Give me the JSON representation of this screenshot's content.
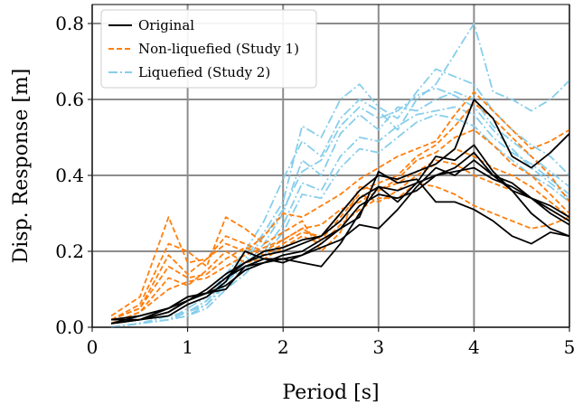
{
  "chart_data": {
    "type": "line",
    "xlabel": "Period [s]",
    "ylabel": "Disp. Response [m]",
    "xlim": [
      0,
      5
    ],
    "ylim": [
      0,
      0.85
    ],
    "xticks": [
      0,
      1,
      2,
      3,
      4,
      5
    ],
    "xtick_labels": [
      "0",
      "1",
      "2",
      "3",
      "4",
      "5"
    ],
    "yticks": [
      0.0,
      0.2,
      0.4,
      0.6,
      0.8
    ],
    "ytick_labels": [
      "0.0",
      "0.2",
      "0.4",
      "0.6",
      "0.8"
    ],
    "grid": true,
    "legend_position": "top-left",
    "groups": [
      {
        "name": "Original",
        "color": "#000000",
        "style": "solid",
        "series": [
          {
            "x": [
              0.2,
              0.5,
              0.8,
              1.0,
              1.2,
              1.4,
              1.6,
              1.8,
              2.0,
              2.2,
              2.4,
              2.6,
              2.8,
              3.0,
              3.2,
              3.4,
              3.6,
              3.8,
              4.0,
              4.2,
              4.4,
              4.6,
              4.8,
              5.0
            ],
            "y": [
              0.01,
              0.02,
              0.04,
              0.07,
              0.09,
              0.13,
              0.17,
              0.2,
              0.21,
              0.23,
              0.24,
              0.3,
              0.36,
              0.4,
              0.39,
              0.41,
              0.43,
              0.47,
              0.6,
              0.55,
              0.45,
              0.42,
              0.46,
              0.51
            ]
          },
          {
            "x": [
              0.2,
              0.5,
              0.8,
              1.0,
              1.2,
              1.4,
              1.6,
              1.8,
              2.0,
              2.2,
              2.4,
              2.6,
              2.8,
              3.0,
              3.2,
              3.4,
              3.6,
              3.8,
              4.0,
              4.2,
              4.4,
              4.6,
              4.8,
              5.0
            ],
            "y": [
              0.02,
              0.03,
              0.05,
              0.08,
              0.09,
              0.1,
              0.16,
              0.18,
              0.18,
              0.17,
              0.16,
              0.22,
              0.3,
              0.37,
              0.33,
              0.38,
              0.45,
              0.44,
              0.48,
              0.41,
              0.36,
              0.34,
              0.31,
              0.28
            ]
          },
          {
            "x": [
              0.2,
              0.5,
              0.8,
              1.0,
              1.2,
              1.4,
              1.6,
              1.8,
              2.0,
              2.2,
              2.4,
              2.6,
              2.8,
              3.0,
              3.2,
              3.4,
              3.6,
              3.8,
              4.0,
              4.2,
              4.4,
              4.6,
              4.8,
              5.0
            ],
            "y": [
              0.01,
              0.02,
              0.03,
              0.06,
              0.08,
              0.12,
              0.2,
              0.18,
              0.17,
              0.19,
              0.22,
              0.26,
              0.32,
              0.35,
              0.34,
              0.36,
              0.4,
              0.42,
              0.46,
              0.4,
              0.36,
              0.3,
              0.26,
              0.24
            ]
          },
          {
            "x": [
              0.2,
              0.5,
              0.8,
              1.0,
              1.2,
              1.4,
              1.6,
              1.8,
              2.0,
              2.2,
              2.4,
              2.6,
              2.8,
              3.0,
              3.2,
              3.4,
              3.6,
              3.8,
              4.0,
              4.2,
              4.4,
              4.6,
              4.8,
              5.0
            ],
            "y": [
              0.01,
              0.02,
              0.04,
              0.07,
              0.1,
              0.14,
              0.17,
              0.19,
              0.2,
              0.22,
              0.24,
              0.28,
              0.34,
              0.37,
              0.36,
              0.38,
              0.4,
              0.41,
              0.42,
              0.39,
              0.37,
              0.34,
              0.3,
              0.27
            ]
          },
          {
            "x": [
              0.2,
              0.5,
              0.8,
              1.0,
              1.2,
              1.4,
              1.6,
              1.8,
              2.0,
              2.2,
              2.4,
              2.6,
              2.8,
              3.0,
              3.2,
              3.4,
              3.6,
              3.8,
              4.0,
              4.2,
              4.4,
              4.6,
              4.8,
              5.0
            ],
            "y": [
              0.02,
              0.02,
              0.05,
              0.08,
              0.09,
              0.11,
              0.15,
              0.17,
              0.19,
              0.2,
              0.23,
              0.26,
              0.29,
              0.41,
              0.38,
              0.39,
              0.33,
              0.33,
              0.31,
              0.28,
              0.24,
              0.22,
              0.25,
              0.24
            ]
          },
          {
            "x": [
              0.2,
              0.5,
              0.8,
              1.0,
              1.2,
              1.4,
              1.6,
              1.8,
              2.0,
              2.2,
              2.4,
              2.6,
              2.8,
              3.0,
              3.2,
              3.4,
              3.6,
              3.8,
              4.0,
              4.2,
              4.4,
              4.6,
              4.8,
              5.0
            ],
            "y": [
              0.01,
              0.03,
              0.05,
              0.07,
              0.09,
              0.13,
              0.16,
              0.17,
              0.18,
              0.19,
              0.21,
              0.23,
              0.27,
              0.26,
              0.31,
              0.37,
              0.42,
              0.4,
              0.44,
              0.4,
              0.38,
              0.34,
              0.32,
              0.29
            ]
          }
        ]
      },
      {
        "name": "Non-liquefied (Study 1)",
        "color": "#ff7f0e",
        "style": "dashed",
        "series": [
          {
            "x": [
              0.2,
              0.5,
              0.8,
              1.0,
              1.2,
              1.4,
              1.6,
              1.8,
              2.0,
              2.2,
              2.4,
              2.6,
              2.8,
              3.0,
              3.2,
              3.4,
              3.6,
              3.8,
              4.0,
              4.2,
              4.4,
              4.6,
              4.8,
              5.0
            ],
            "y": [
              0.03,
              0.08,
              0.29,
              0.17,
              0.18,
              0.22,
              0.2,
              0.24,
              0.3,
              0.29,
              0.32,
              0.35,
              0.39,
              0.42,
              0.45,
              0.47,
              0.49,
              0.56,
              0.62,
              0.57,
              0.52,
              0.47,
              0.49,
              0.52
            ]
          },
          {
            "x": [
              0.2,
              0.5,
              0.8,
              1.0,
              1.2,
              1.4,
              1.6,
              1.8,
              2.0,
              2.2,
              2.4,
              2.6,
              2.8,
              3.0,
              3.2,
              3.4,
              3.6,
              3.8,
              4.0,
              4.2,
              4.4,
              4.6,
              4.8,
              5.0
            ],
            "y": [
              0.02,
              0.06,
              0.22,
              0.2,
              0.16,
              0.29,
              0.26,
              0.22,
              0.25,
              0.28,
              0.2,
              0.25,
              0.37,
              0.36,
              0.39,
              0.44,
              0.46,
              0.5,
              0.52,
              0.48,
              0.43,
              0.4,
              0.35,
              0.3
            ]
          },
          {
            "x": [
              0.2,
              0.5,
              0.8,
              1.0,
              1.2,
              1.4,
              1.6,
              1.8,
              2.0,
              2.2,
              2.4,
              2.6,
              2.8,
              3.0,
              3.2,
              3.4,
              3.6,
              3.8,
              4.0,
              4.2,
              4.4,
              4.6,
              4.8,
              5.0
            ],
            "y": [
              0.02,
              0.05,
              0.19,
              0.14,
              0.18,
              0.24,
              0.22,
              0.2,
              0.23,
              0.26,
              0.23,
              0.29,
              0.35,
              0.33,
              0.36,
              0.4,
              0.43,
              0.47,
              0.45,
              0.42,
              0.4,
              0.37,
              0.33,
              0.29
            ]
          },
          {
            "x": [
              0.2,
              0.5,
              0.8,
              1.0,
              1.2,
              1.4,
              1.6,
              1.8,
              2.0,
              2.2,
              2.4,
              2.6,
              2.8,
              3.0,
              3.2,
              3.4,
              3.6,
              3.8,
              4.0,
              4.2,
              4.4,
              4.6,
              4.8,
              5.0
            ],
            "y": [
              0.01,
              0.04,
              0.13,
              0.11,
              0.15,
              0.2,
              0.17,
              0.18,
              0.21,
              0.24,
              0.22,
              0.27,
              0.31,
              0.34,
              0.34,
              0.38,
              0.37,
              0.35,
              0.32,
              0.3,
              0.28,
              0.26,
              0.27,
              0.29
            ]
          },
          {
            "x": [
              0.2,
              0.5,
              0.8,
              1.0,
              1.2,
              1.4,
              1.6,
              1.8,
              2.0,
              2.2,
              2.4,
              2.6,
              2.8,
              3.0,
              3.2,
              3.4,
              3.6,
              3.8,
              4.0,
              4.2,
              4.4,
              4.6,
              4.8,
              5.0
            ],
            "y": [
              0.02,
              0.05,
              0.16,
              0.13,
              0.14,
              0.18,
              0.21,
              0.19,
              0.22,
              0.25,
              0.24,
              0.3,
              0.36,
              0.38,
              0.4,
              0.45,
              0.48,
              0.53,
              0.59,
              0.55,
              0.5,
              0.45,
              0.4,
              0.33
            ]
          },
          {
            "x": [
              0.2,
              0.5,
              0.8,
              1.0,
              1.2,
              1.4,
              1.6,
              1.8,
              2.0,
              2.2,
              2.4,
              2.6,
              2.8,
              3.0,
              3.2,
              3.4,
              3.6,
              3.8,
              4.0,
              4.2,
              4.4,
              4.6,
              4.8,
              5.0
            ],
            "y": [
              0.01,
              0.04,
              0.1,
              0.12,
              0.13,
              0.16,
              0.19,
              0.21,
              0.23,
              0.26,
              0.27,
              0.31,
              0.33,
              0.36,
              0.38,
              0.41,
              0.44,
              0.43,
              0.4,
              0.38,
              0.36,
              0.34,
              0.31,
              0.28
            ]
          }
        ]
      },
      {
        "name": "Liquefied (Study 2)",
        "color": "#87ceeb",
        "style": "dashdot",
        "series": [
          {
            "x": [
              0.2,
              0.5,
              0.8,
              1.0,
              1.2,
              1.4,
              1.6,
              1.8,
              2.0,
              2.2,
              2.4,
              2.6,
              2.8,
              3.0,
              3.2,
              3.4,
              3.6,
              3.8,
              4.0,
              4.2,
              4.4,
              4.6,
              4.8,
              5.0
            ],
            "y": [
              0.0,
              0.01,
              0.02,
              0.05,
              0.08,
              0.14,
              0.2,
              0.28,
              0.39,
              0.49,
              0.45,
              0.55,
              0.6,
              0.57,
              0.52,
              0.6,
              0.64,
              0.72,
              0.8,
              0.62,
              0.6,
              0.57,
              0.6,
              0.65
            ]
          },
          {
            "x": [
              0.2,
              0.5,
              0.8,
              1.0,
              1.2,
              1.4,
              1.6,
              1.8,
              2.0,
              2.2,
              2.4,
              2.6,
              2.8,
              3.0,
              3.2,
              3.4,
              3.6,
              3.8,
              4.0,
              4.2,
              4.4,
              4.6,
              4.8,
              5.0
            ],
            "y": [
              0.0,
              0.01,
              0.03,
              0.04,
              0.07,
              0.13,
              0.18,
              0.25,
              0.33,
              0.53,
              0.5,
              0.6,
              0.64,
              0.58,
              0.55,
              0.62,
              0.68,
              0.66,
              0.64,
              0.57,
              0.52,
              0.48,
              0.45,
              0.4
            ]
          },
          {
            "x": [
              0.2,
              0.5,
              0.8,
              1.0,
              1.2,
              1.4,
              1.6,
              1.8,
              2.0,
              2.2,
              2.4,
              2.6,
              2.8,
              3.0,
              3.2,
              3.4,
              3.6,
              3.8,
              4.0,
              4.2,
              4.4,
              4.6,
              4.8,
              5.0
            ],
            "y": [
              0.0,
              0.01,
              0.02,
              0.03,
              0.06,
              0.12,
              0.16,
              0.22,
              0.3,
              0.44,
              0.4,
              0.51,
              0.56,
              0.52,
              0.58,
              0.57,
              0.6,
              0.62,
              0.6,
              0.53,
              0.49,
              0.45,
              0.41,
              0.37
            ]
          },
          {
            "x": [
              0.2,
              0.5,
              0.8,
              1.0,
              1.2,
              1.4,
              1.6,
              1.8,
              2.0,
              2.2,
              2.4,
              2.6,
              2.8,
              3.0,
              3.2,
              3.4,
              3.6,
              3.8,
              4.0,
              4.2,
              4.4,
              4.6,
              4.8,
              5.0
            ],
            "y": [
              0.0,
              0.01,
              0.02,
              0.04,
              0.06,
              0.11,
              0.15,
              0.2,
              0.27,
              0.38,
              0.36,
              0.45,
              0.5,
              0.49,
              0.53,
              0.56,
              0.57,
              0.58,
              0.56,
              0.5,
              0.46,
              0.43,
              0.39,
              0.35
            ]
          },
          {
            "x": [
              0.2,
              0.5,
              0.8,
              1.0,
              1.2,
              1.4,
              1.6,
              1.8,
              2.0,
              2.2,
              2.4,
              2.6,
              2.8,
              3.0,
              3.2,
              3.4,
              3.6,
              3.8,
              4.0,
              4.2,
              4.4,
              4.6,
              4.8,
              5.0
            ],
            "y": [
              0.0,
              0.01,
              0.03,
              0.04,
              0.07,
              0.12,
              0.17,
              0.24,
              0.31,
              0.41,
              0.44,
              0.53,
              0.58,
              0.55,
              0.57,
              0.61,
              0.63,
              0.61,
              0.58,
              0.52,
              0.47,
              0.42,
              0.38,
              0.34
            ]
          },
          {
            "x": [
              0.2,
              0.5,
              0.8,
              1.0,
              1.2,
              1.4,
              1.6,
              1.8,
              2.0,
              2.2,
              2.4,
              2.6,
              2.8,
              3.0,
              3.2,
              3.4,
              3.6,
              3.8,
              4.0,
              4.2,
              4.4,
              4.6,
              4.8,
              5.0
            ],
            "y": [
              0.0,
              0.01,
              0.02,
              0.03,
              0.05,
              0.1,
              0.14,
              0.19,
              0.25,
              0.35,
              0.34,
              0.42,
              0.47,
              0.46,
              0.5,
              0.54,
              0.56,
              0.55,
              0.53,
              0.48,
              0.44,
              0.4,
              0.37,
              0.33
            ]
          }
        ]
      }
    ]
  }
}
